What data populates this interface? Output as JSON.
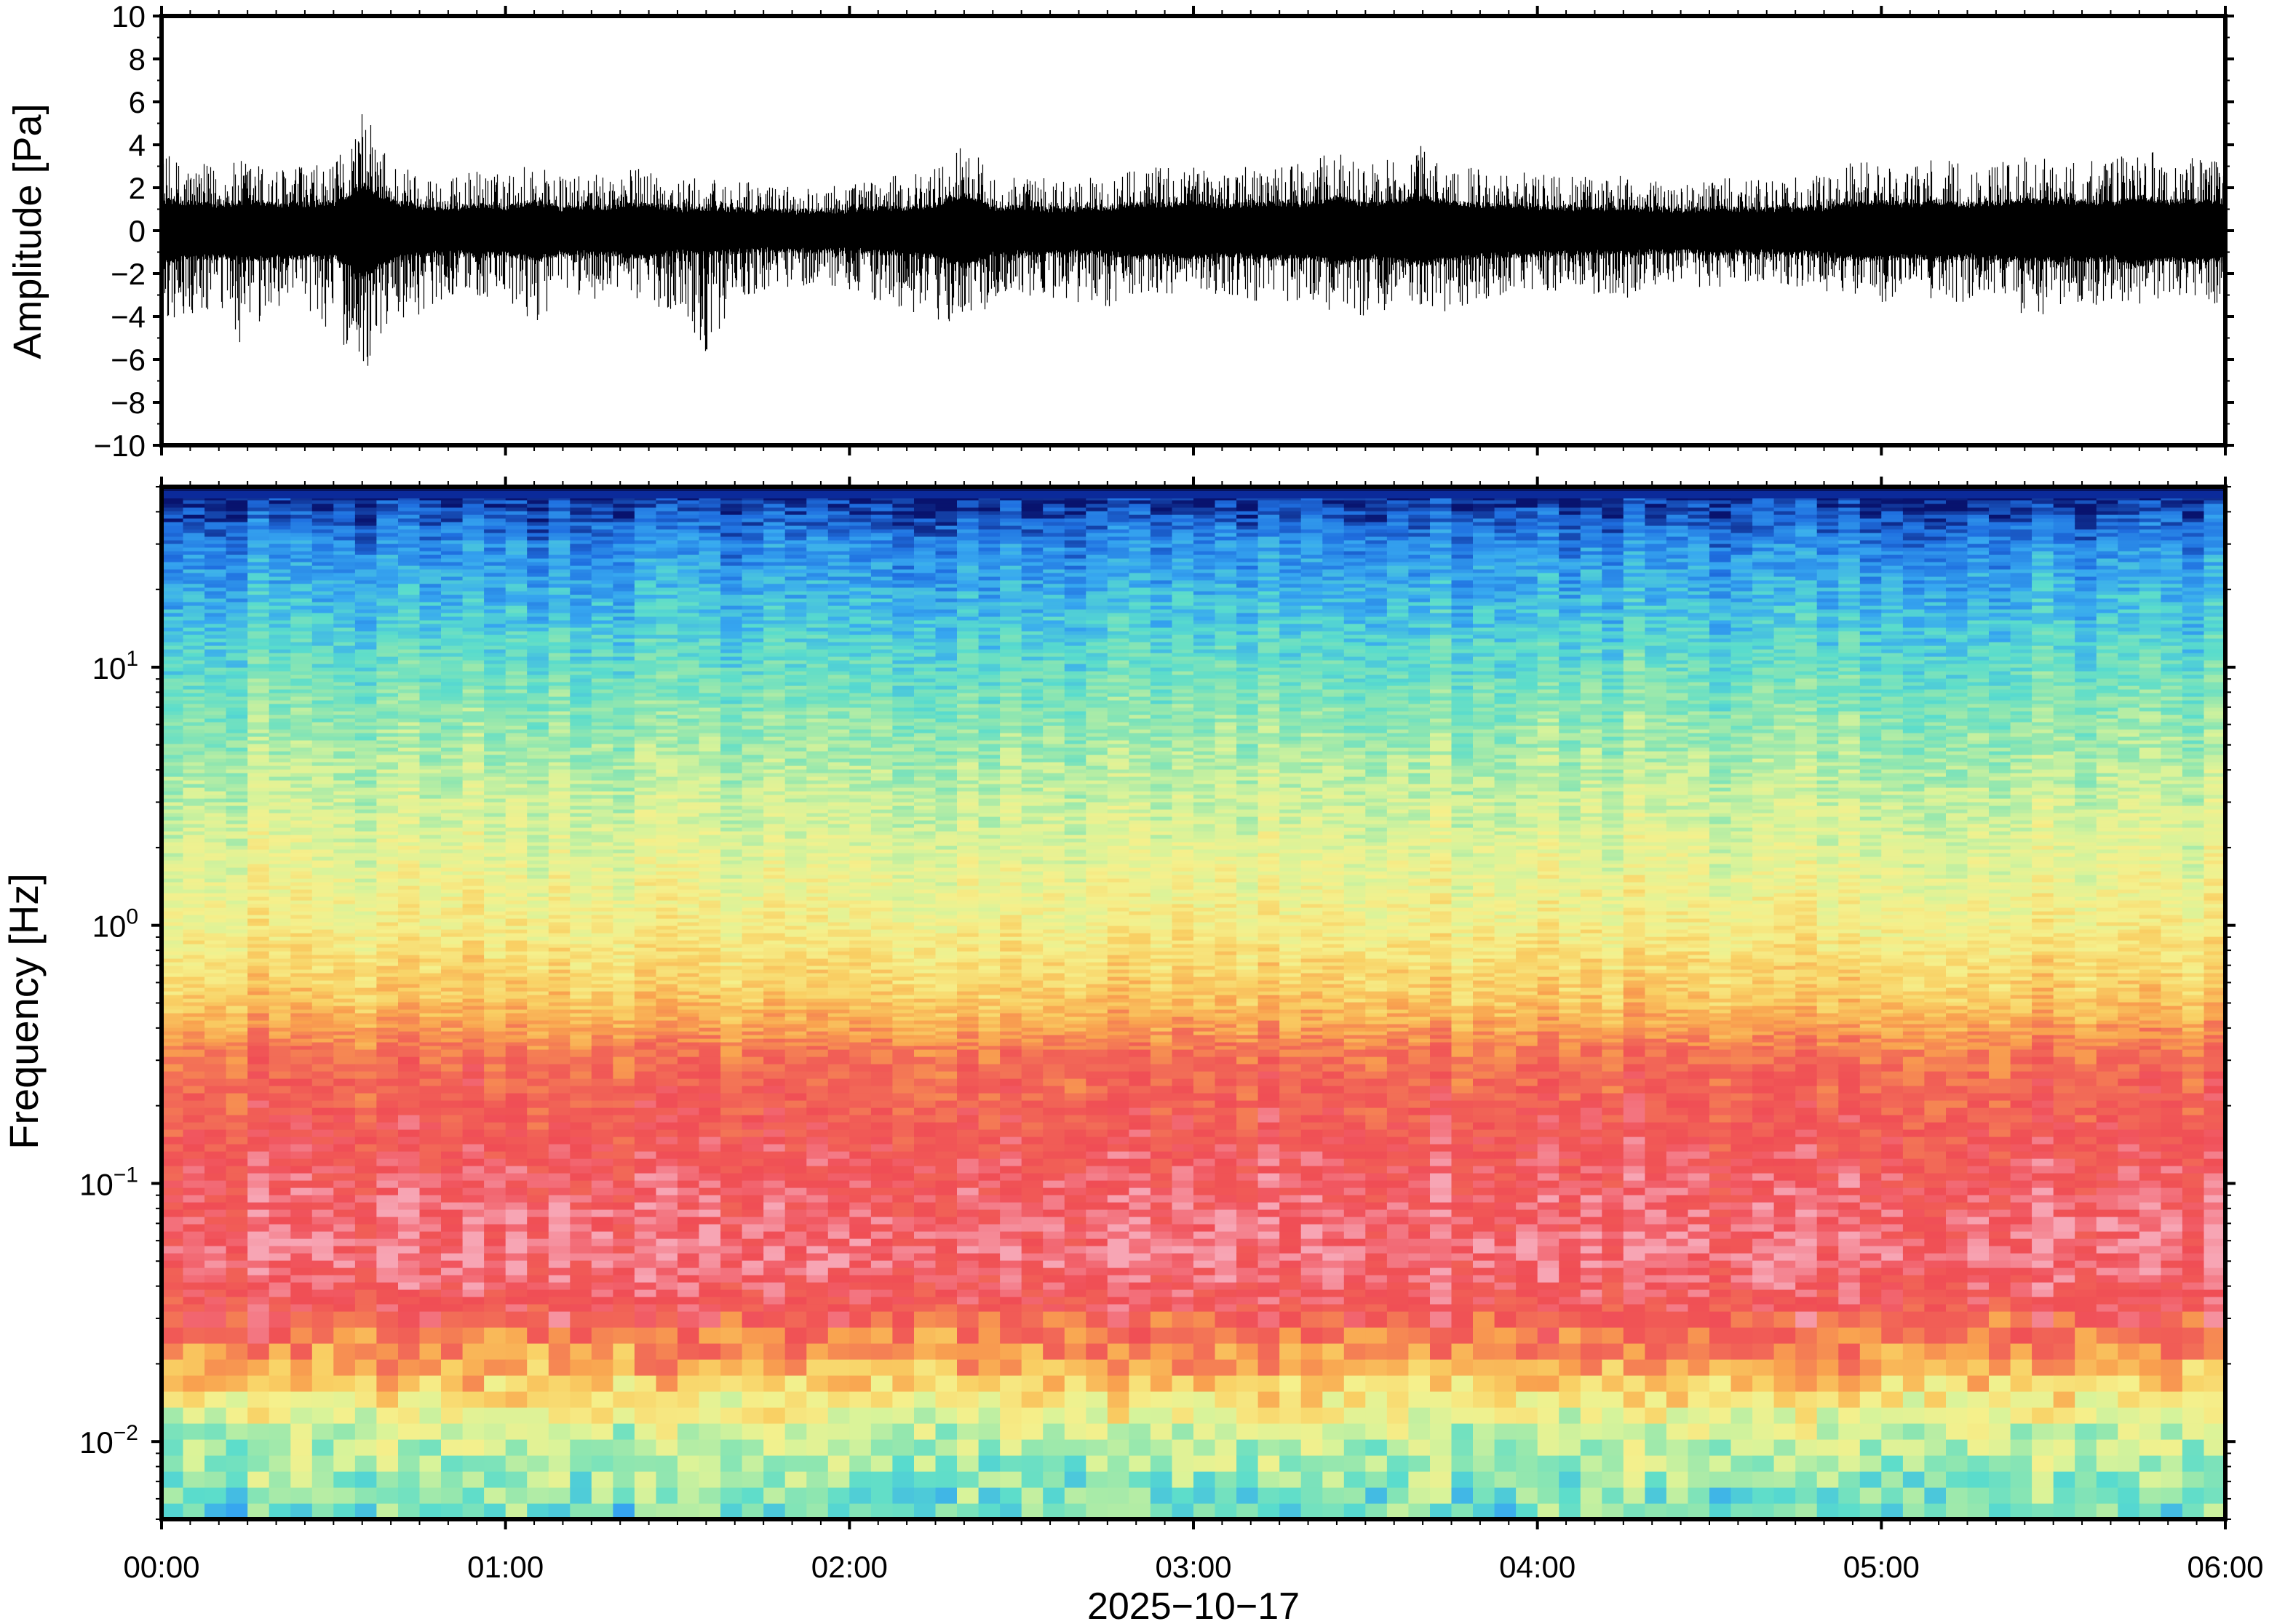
{
  "chart_data": [
    {
      "type": "line",
      "panel": "waveform",
      "ylabel": "Amplitude [Pa]",
      "ylim": [
        -10,
        10
      ],
      "yticks": [
        10,
        8,
        6,
        4,
        2,
        0,
        -2,
        -4,
        -6,
        -8,
        -10
      ],
      "ytick_labels": [
        "10",
        "8",
        "6",
        "4",
        "2",
        "0",
        "−2",
        "−4",
        "−6",
        "−8",
        "−10"
      ],
      "xlim": [
        "00:00",
        "06:00"
      ],
      "envelope_minutes": [
        0,
        5,
        10,
        15,
        20,
        25,
        30,
        35,
        40,
        45,
        50,
        55,
        60,
        65,
        70,
        75,
        80,
        85,
        90,
        95,
        100,
        105,
        110,
        115,
        120,
        125,
        130,
        135,
        140,
        145,
        150,
        155,
        160,
        165,
        170,
        175,
        180,
        185,
        190,
        195,
        200,
        205,
        210,
        215,
        220,
        225,
        230,
        235,
        240,
        245,
        250,
        255,
        260,
        265,
        270,
        275,
        280,
        285,
        290,
        295,
        300,
        305,
        310,
        315,
        320,
        325,
        330,
        335,
        340,
        345,
        350,
        355,
        360
      ],
      "envelope_max": [
        3.6,
        3.2,
        3.0,
        3.4,
        3.0,
        3.1,
        3.0,
        5.7,
        3.4,
        2.8,
        2.4,
        2.9,
        2.6,
        3.4,
        2.5,
        2.6,
        2.8,
        3.1,
        2.4,
        2.5,
        2.3,
        2.2,
        2.1,
        2.3,
        2.2,
        2.5,
        2.6,
        3.0,
        4.4,
        2.6,
        2.6,
        2.4,
        2.5,
        2.5,
        3.1,
        3.0,
        3.2,
        2.9,
        3.0,
        3.2,
        3.1,
        3.9,
        3.0,
        3.4,
        4.0,
        3.2,
        3.0,
        2.8,
        2.7,
        2.6,
        2.5,
        2.7,
        2.3,
        2.2,
        2.5,
        2.5,
        2.3,
        2.5,
        2.6,
        3.2,
        3.3,
        3.0,
        3.4,
        3.0,
        3.2,
        3.5,
        3.4,
        3.4,
        3.2,
        4.0,
        3.3,
        3.6,
        3.4
      ],
      "envelope_min": [
        -4.2,
        -4.4,
        -3.9,
        -6.1,
        -3.5,
        -3.9,
        -4.8,
        -6.9,
        -4.3,
        -3.9,
        -3.0,
        -3.1,
        -3.7,
        -4.4,
        -3.0,
        -3.2,
        -3.0,
        -3.5,
        -3.7,
        -5.7,
        -3.2,
        -3.0,
        -2.6,
        -2.6,
        -2.8,
        -3.5,
        -3.8,
        -4.7,
        -3.9,
        -3.6,
        -3.0,
        -3.3,
        -3.5,
        -3.6,
        -3.1,
        -3.0,
        -2.9,
        -3.3,
        -3.5,
        -3.4,
        -3.3,
        -3.9,
        -4.3,
        -3.5,
        -3.9,
        -3.8,
        -3.6,
        -3.0,
        -2.8,
        -2.9,
        -3.1,
        -3.2,
        -2.6,
        -2.5,
        -2.7,
        -2.5,
        -2.4,
        -2.6,
        -2.9,
        -3.2,
        -3.4,
        -3.1,
        -3.2,
        -3.4,
        -3.2,
        -4.3,
        -3.7,
        -3.5,
        -3.8,
        -3.6,
        -3.2,
        -3.6,
        -3.3
      ]
    },
    {
      "type": "heatmap",
      "panel": "spectrogram",
      "ylabel": "Frequency [Hz]",
      "yscale": "log",
      "ylim": [
        0.005,
        50
      ],
      "yticks": [
        0.01,
        0.1,
        1,
        10
      ],
      "ytick_bases": [
        "10",
        "10",
        "10",
        "10"
      ],
      "ytick_exponents": [
        "−2",
        "−1",
        "0",
        "1"
      ],
      "xlabel": "2025−10−17",
      "xticks": [
        "00:00",
        "01:00",
        "02:00",
        "03:00",
        "04:00",
        "05:00",
        "06:00"
      ],
      "xlim": [
        "00:00",
        "06:00"
      ],
      "colormap": "blue-cyan-green-yellow-orange-red-pink (high power = pink/red, low power = blue)",
      "colorscale": [
        "#08136e",
        "#1f6fe0",
        "#37a8f0",
        "#59dccd",
        "#8fe6b0",
        "#d8f39a",
        "#f5f08c",
        "#f9d064",
        "#f9a24f",
        "#f26b57",
        "#f04d55",
        "#f7a5b4"
      ],
      "power_db_by_frequency_Hz": {
        "50": 0.0,
        "30": 0.14,
        "10": 0.3,
        "3": 0.45,
        "1": 0.55,
        "0.5": 0.66,
        "0.3": 0.82,
        "0.1": 0.92,
        "0.05": 0.96,
        "0.03": 0.88,
        "0.02": 0.74,
        "0.01": 0.45,
        "0.005": 0.32
      }
    }
  ]
}
